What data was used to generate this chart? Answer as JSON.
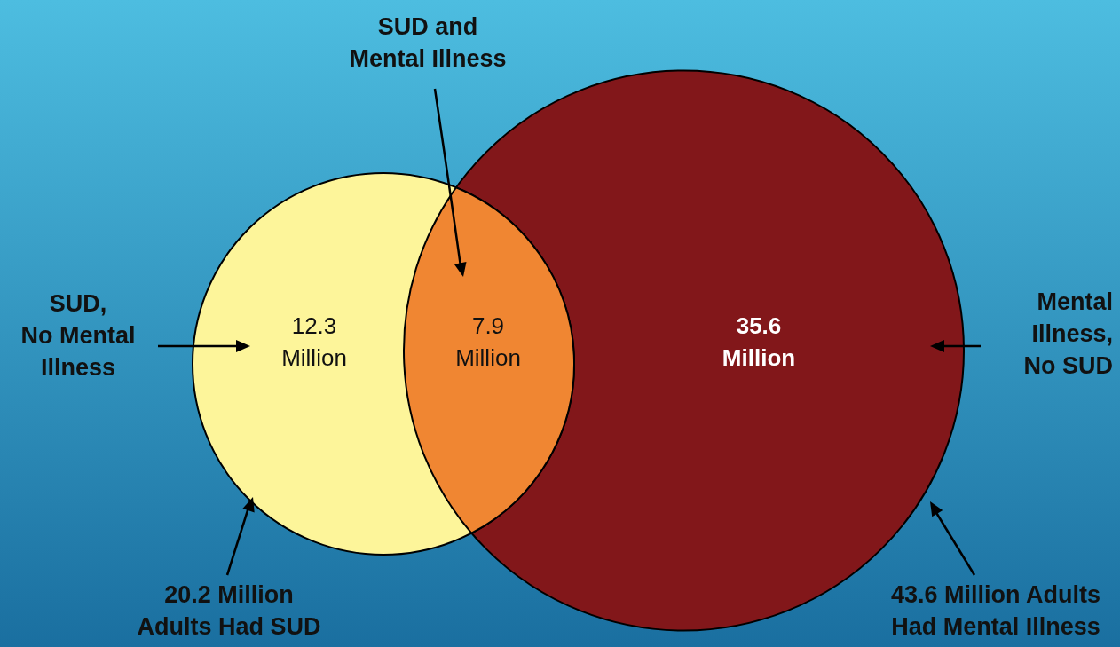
{
  "chart_data": {
    "type": "other",
    "categories": [
      "SUD,\nNo Mental\nIllness",
      "SUD and\nMental Illness",
      "Mental\nIllness,\nNo SUD"
    ],
    "values": [
      12.3,
      7.9,
      35.6
    ],
    "value_labels": [
      "12.3\nMillion",
      "7.9\nMillion",
      "35.6\nMillion"
    ],
    "colors": [
      "#fdf59a",
      "#f08632",
      "#82171a"
    ],
    "annotations": [
      "20.2 Million\nAdults Had SUD",
      "43.6 Million Adults\nHad Mental Illness"
    ]
  }
}
